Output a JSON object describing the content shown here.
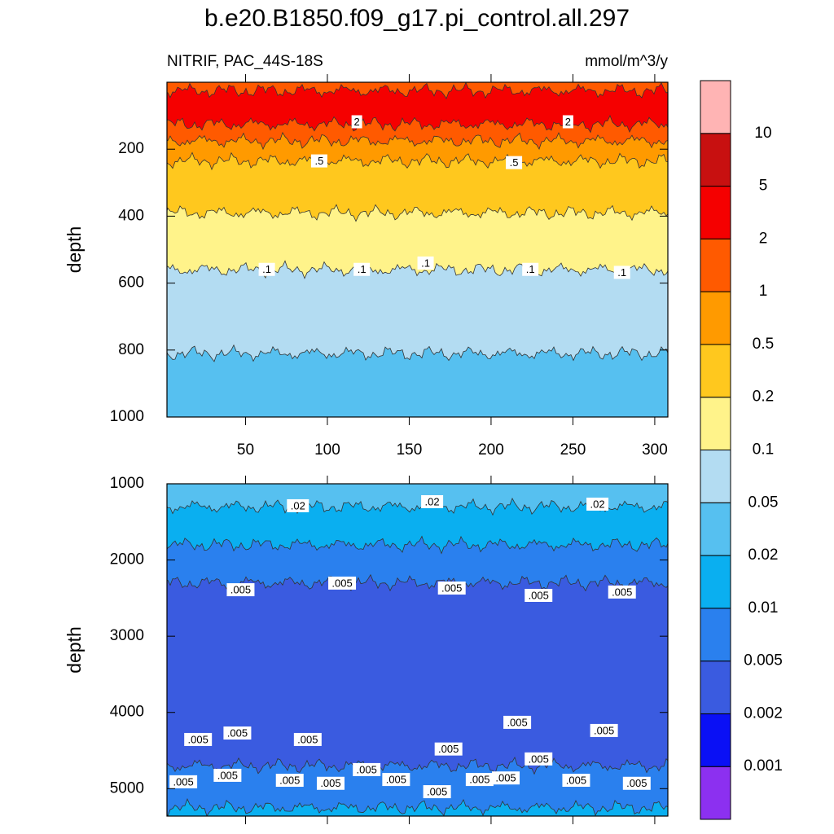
{
  "title": "b.e20.B1850.f09_g17.pi_control.all.297",
  "subtitle_left": "NITRIF, PAC_44S-18S",
  "subtitle_right": "mmol/m^3/y",
  "chart_data": [
    {
      "type": "contour",
      "ylabel": "depth",
      "xlim": [
        2,
        308
      ],
      "ylim": [
        0,
        1000
      ],
      "reverse_y": true,
      "xticks": [
        50,
        100,
        150,
        200,
        250,
        300
      ],
      "yticks": [
        200,
        400,
        600,
        800,
        1000
      ],
      "show_xtick_labels": true,
      "bands": [
        {
          "color": "#ff5a00",
          "bottom": 25
        },
        {
          "color": "#f50000",
          "bottom": 125
        },
        {
          "color": "#ff5a00",
          "bottom": 175
        },
        {
          "color": "#ff9a00",
          "bottom": 235
        },
        {
          "color": "#ffc81e",
          "bottom": 390
        },
        {
          "color": "#fff38a",
          "bottom": 560
        },
        {
          "color": "#b3dcf2",
          "bottom": 810
        },
        {
          "color": "#56c0f0"
        }
      ],
      "contour_labels": [
        {
          "value": 2,
          "label": "2",
          "x": 118,
          "depth": 118
        },
        {
          "value": 2,
          "label": "2",
          "x": 247,
          "depth": 118
        },
        {
          "value": 0.5,
          "label": ".5",
          "x": 95,
          "depth": 235
        },
        {
          "value": 0.5,
          "label": ".5",
          "x": 214,
          "depth": 240
        },
        {
          "value": 0.1,
          "label": ".1",
          "x": 63,
          "depth": 559
        },
        {
          "value": 0.1,
          "label": ".1",
          "x": 121,
          "depth": 559
        },
        {
          "value": 0.1,
          "label": ".1",
          "x": 160,
          "depth": 540
        },
        {
          "value": 0.1,
          "label": ".1",
          "x": 224,
          "depth": 559
        },
        {
          "value": 0.1,
          "label": ".1",
          "x": 280,
          "depth": 568
        }
      ]
    },
    {
      "type": "contour",
      "ylabel": "depth",
      "xlim": [
        2,
        308
      ],
      "ylim": [
        1000,
        5360
      ],
      "reverse_y": true,
      "xticks": [
        50,
        100,
        150,
        200,
        250,
        300
      ],
      "yticks": [
        1000,
        2000,
        3000,
        4000,
        5000
      ],
      "show_xtick_labels": false,
      "bands": [
        {
          "color": "#56c0f0",
          "bottom": 1300
        },
        {
          "color": "#0aaff0",
          "bottom": 1800
        },
        {
          "color": "#2a80ee",
          "bottom": 2300
        },
        {
          "color": "#3a5be0",
          "bottom": 4700
        },
        {
          "color": "#2a80ee",
          "bottom": 5250
        },
        {
          "color": "#0aaff0"
        }
      ],
      "contour_labels": [
        {
          "value": 0.02,
          "label": ".02",
          "x": 82,
          "depth": 1288
        },
        {
          "value": 0.02,
          "label": ".02",
          "x": 164,
          "depth": 1235
        },
        {
          "value": 0.02,
          "label": ".02",
          "x": 265,
          "depth": 1267
        },
        {
          "value": 0.005,
          "label": ".005",
          "x": 47,
          "depth": 2390
        },
        {
          "value": 0.005,
          "label": ".005",
          "x": 109,
          "depth": 2303
        },
        {
          "value": 0.005,
          "label": ".005",
          "x": 176,
          "depth": 2368
        },
        {
          "value": 0.005,
          "label": ".005",
          "x": 229,
          "depth": 2464
        },
        {
          "value": 0.005,
          "label": ".005",
          "x": 280,
          "depth": 2420
        },
        {
          "value": 0.005,
          "label": ".005",
          "x": 216,
          "depth": 4130
        },
        {
          "value": 0.005,
          "label": ".005",
          "x": 269,
          "depth": 4237
        },
        {
          "value": 0.005,
          "label": ".005",
          "x": 21,
          "depth": 4355
        },
        {
          "value": 0.005,
          "label": ".005",
          "x": 45,
          "depth": 4270
        },
        {
          "value": 0.005,
          "label": ".005",
          "x": 88,
          "depth": 4355
        },
        {
          "value": 0.005,
          "label": ".005",
          "x": 39,
          "depth": 4825
        },
        {
          "value": 0.005,
          "label": ".005",
          "x": 77,
          "depth": 4890
        },
        {
          "value": 0.005,
          "label": ".005",
          "x": 12,
          "depth": 4910
        },
        {
          "value": 0.005,
          "label": ".005",
          "x": 102,
          "depth": 4930
        },
        {
          "value": 0.005,
          "label": ".005",
          "x": 124,
          "depth": 4750
        },
        {
          "value": 0.005,
          "label": ".005",
          "x": 142,
          "depth": 4880
        },
        {
          "value": 0.005,
          "label": ".005",
          "x": 174,
          "depth": 4480
        },
        {
          "value": 0.005,
          "label": ".005",
          "x": 167,
          "depth": 5040
        },
        {
          "value": 0.005,
          "label": ".005",
          "x": 193,
          "depth": 4880
        },
        {
          "value": 0.005,
          "label": ".005",
          "x": 209,
          "depth": 4860
        },
        {
          "value": 0.005,
          "label": ".005",
          "x": 229,
          "depth": 4610
        },
        {
          "value": 0.005,
          "label": ".005",
          "x": 252,
          "depth": 4890
        },
        {
          "value": 0.005,
          "label": ".005",
          "x": 289,
          "depth": 4930
        }
      ]
    }
  ],
  "colorbar": {
    "levels": [
      0.001,
      0.002,
      0.005,
      0.01,
      0.02,
      0.05,
      0.1,
      0.2,
      0.5,
      1,
      2,
      5,
      10
    ],
    "colors": [
      "#8c30f0",
      "#0a10f5",
      "#3a5be0",
      "#2a80ee",
      "#0aaff0",
      "#56c0f0",
      "#b3dcf2",
      "#fff38a",
      "#ffc81e",
      "#ff9a00",
      "#ff5a00",
      "#f50000",
      "#c81010",
      "#ffb4b4"
    ]
  }
}
